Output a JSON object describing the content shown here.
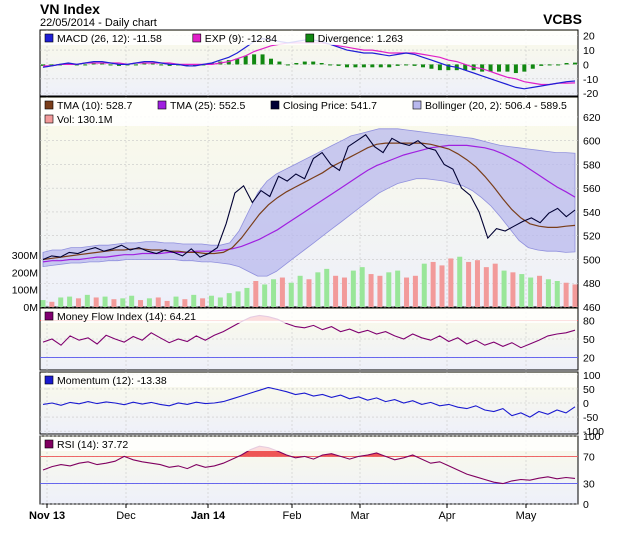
{
  "header": {
    "title": "VN Index",
    "subtitle": "22/05/2014 - Daily chart",
    "brand": "VCBS"
  },
  "colors": {
    "macd": "#1f1fd6",
    "exp": "#e020c8",
    "divergence": "#118811",
    "tma10": "#7a3e1a",
    "tma25": "#a020e0",
    "close": "#000033",
    "bollinger_fill": "#b8b8ee",
    "bollinger_line": "#9090dd",
    "vol_up": "#99e699",
    "vol_down": "#f29a9a",
    "mfi": "#800070",
    "momentum": "#1a1ad0",
    "rsi": "#800060",
    "overbought_fill": "#ee5555",
    "guide_line": "#ee5555",
    "guide_line_low": "#5555ee",
    "panel_bg_top": "#fbfbe8",
    "panel_bg_bottom": "#eef0fa",
    "grid": "#c8c8c8"
  },
  "chart_data": [
    {
      "type": "line",
      "panel": "macd",
      "legend": [
        {
          "swatch": "#1f1fd6",
          "label": "MACD (26, 12): -11.58"
        },
        {
          "swatch": "#e020c8",
          "label": "EXP (9): -12.84"
        },
        {
          "swatch": "#118811",
          "label": "Divergence: 1.263"
        }
      ],
      "y_ticks": [
        "20",
        "10",
        "0",
        "-10",
        "-20"
      ],
      "ylim": [
        -22,
        24
      ],
      "series": [
        {
          "key": "macd",
          "values": [
            -2,
            -1,
            0,
            1,
            0,
            1,
            2,
            2,
            1,
            0,
            0,
            1,
            2,
            2,
            1,
            0,
            0,
            -1,
            -1,
            0,
            1,
            3,
            5,
            8,
            12,
            16,
            18,
            17,
            16,
            15,
            16,
            17,
            17,
            16,
            14,
            12,
            10,
            9,
            8,
            8,
            7,
            6,
            7,
            8,
            7,
            5,
            3,
            1,
            -1,
            -2,
            -4,
            -6,
            -8,
            -10,
            -12,
            -14,
            -16,
            -17,
            -16,
            -15,
            -14,
            -13,
            -12,
            -11.58
          ]
        },
        {
          "key": "exp",
          "values": [
            -1,
            -1,
            0,
            0,
            0,
            1,
            1,
            1,
            1,
            1,
            0,
            1,
            1,
            1,
            1,
            1,
            0,
            0,
            0,
            0,
            0,
            1,
            2,
            4,
            6,
            9,
            11,
            13,
            14,
            15,
            15,
            15,
            15,
            15,
            14,
            13,
            12,
            11,
            10,
            10,
            9,
            8,
            8,
            8,
            8,
            7,
            6,
            5,
            3,
            2,
            0,
            -2,
            -3,
            -5,
            -7,
            -9,
            -10,
            -12,
            -13,
            -14,
            -14,
            -13,
            -13,
            -12.84
          ]
        },
        {
          "key": "divergence",
          "values": [
            -1,
            0,
            0,
            1,
            0,
            0,
            1,
            1,
            0,
            -1,
            0,
            0,
            1,
            1,
            0,
            -1,
            0,
            -1,
            -1,
            0,
            1,
            2,
            3,
            4,
            6,
            7,
            7,
            4,
            2,
            0,
            1,
            2,
            2,
            1,
            0,
            -1,
            -2,
            -2,
            -2,
            -2,
            -2,
            -2,
            -1,
            0,
            -1,
            -2,
            -3,
            -4,
            -4,
            -4,
            -4,
            -4,
            -5,
            -5,
            -5,
            -5,
            -6,
            -5,
            -3,
            -1,
            0,
            0,
            1,
            1.263
          ]
        }
      ]
    },
    {
      "type": "line",
      "panel": "price",
      "legend": [
        {
          "swatch": "#7a3e1a",
          "label": "TMA (10): 528.7"
        },
        {
          "swatch": "#a020e0",
          "label": "TMA (25): 552.5"
        },
        {
          "swatch": "#000033",
          "label": "Closing Price: 541.7"
        },
        {
          "swatch": "#b8b8ee",
          "label": "Bollinger (20, 2): 506.4 - 589.5"
        },
        {
          "swatch": "#f29a9a",
          "label": "Vol: 130.1M"
        }
      ],
      "y_ticks": [
        "620",
        "600",
        "580",
        "560",
        "540",
        "520",
        "500",
        "480",
        "460"
      ],
      "ylim": [
        460,
        625
      ],
      "vol_ticks": [
        "300M",
        "200M",
        "100M",
        "0M"
      ],
      "vol_lim": [
        0,
        300
      ],
      "series": [
        {
          "key": "close",
          "values": [
            500,
            503,
            502,
            506,
            505,
            508,
            510,
            507,
            509,
            512,
            508,
            510,
            507,
            505,
            508,
            506,
            503,
            509,
            502,
            505,
            510,
            530,
            556,
            562,
            548,
            558,
            553,
            570,
            566,
            572,
            568,
            585,
            590,
            580,
            575,
            595,
            600,
            605,
            595,
            590,
            602,
            598,
            596,
            600,
            594,
            592,
            580,
            576,
            560,
            554,
            540,
            518,
            526,
            524,
            528,
            532,
            535,
            531,
            539,
            543,
            536,
            541.7
          ]
        },
        {
          "key": "tma10",
          "values": [
            500,
            501,
            502,
            503,
            504,
            505,
            506,
            507,
            508,
            508,
            509,
            509,
            508,
            508,
            507,
            507,
            506,
            506,
            505,
            505,
            506,
            510,
            518,
            528,
            538,
            546,
            552,
            557,
            561,
            565,
            569,
            573,
            578,
            582,
            586,
            590,
            594,
            597,
            598,
            598,
            598,
            598,
            598,
            597,
            595,
            593,
            589,
            584,
            578,
            570,
            561,
            551,
            542,
            535,
            530,
            528,
            527,
            527,
            528,
            528.7
          ]
        },
        {
          "key": "tma25",
          "values": [
            498,
            499,
            499,
            500,
            500,
            501,
            502,
            502,
            503,
            504,
            504,
            505,
            505,
            505,
            506,
            506,
            506,
            507,
            507,
            507,
            508,
            509,
            511,
            514,
            517,
            521,
            525,
            530,
            535,
            540,
            545,
            550,
            555,
            560,
            565,
            570,
            575,
            579,
            582,
            585,
            588,
            590,
            592,
            594,
            595,
            596,
            596,
            596,
            595,
            594,
            592,
            589,
            585,
            581,
            576,
            571,
            566,
            561,
            557,
            552.5
          ]
        },
        {
          "key": "boll_upper",
          "values": [
            506,
            508,
            508,
            510,
            510,
            511,
            512,
            512,
            513,
            514,
            514,
            515,
            515,
            514,
            514,
            513,
            513,
            513,
            512,
            512,
            514,
            524,
            540,
            556,
            566,
            572,
            576,
            580,
            584,
            588,
            592,
            596,
            600,
            604,
            606,
            608,
            610,
            610,
            610,
            609,
            608,
            607,
            606,
            605,
            604,
            603,
            602,
            600,
            598,
            596,
            595,
            594,
            593,
            592,
            591,
            590,
            590,
            589.5
          ]
        },
        {
          "key": "boll_lower",
          "values": [
            494,
            495,
            496,
            497,
            497,
            498,
            498,
            499,
            499,
            500,
            500,
            500,
            500,
            500,
            500,
            499,
            499,
            498,
            498,
            497,
            496,
            494,
            490,
            486,
            486,
            490,
            496,
            502,
            508,
            514,
            520,
            526,
            532,
            538,
            544,
            550,
            556,
            560,
            564,
            566,
            568,
            568,
            567,
            566,
            564,
            562,
            558,
            552,
            545,
            536,
            526,
            516,
            510,
            508,
            507,
            507,
            506,
            506.4
          ]
        },
        {
          "key": "volume",
          "values": [
            40,
            30,
            55,
            60,
            50,
            70,
            55,
            60,
            45,
            50,
            65,
            40,
            50,
            55,
            35,
            60,
            45,
            70,
            50,
            65,
            55,
            80,
            90,
            110,
            150,
            130,
            160,
            170,
            140,
            180,
            160,
            200,
            220,
            180,
            170,
            210,
            230,
            190,
            180,
            200,
            210,
            170,
            180,
            250,
            260,
            240,
            280,
            290,
            260,
            270,
            230,
            250,
            210,
            200,
            190,
            170,
            180,
            160,
            150,
            140,
            130.1
          ]
        },
        {
          "key": "volume_down",
          "values": [
            0,
            1,
            0,
            0,
            1,
            0,
            1,
            0,
            1,
            0,
            0,
            1,
            0,
            1,
            1,
            0,
            1,
            0,
            1,
            0,
            0,
            0,
            0,
            0,
            1,
            0,
            0,
            1,
            0,
            0,
            1,
            0,
            0,
            1,
            1,
            0,
            0,
            1,
            1,
            0,
            0,
            1,
            1,
            0,
            1,
            1,
            1,
            0,
            1,
            1,
            1,
            1,
            0,
            1,
            0,
            0,
            1,
            0,
            0,
            1,
            1
          ]
        }
      ]
    },
    {
      "type": "line",
      "panel": "mfi",
      "legend": [
        {
          "swatch": "#800070",
          "label": "Money Flow Index (14): 64.21"
        }
      ],
      "y_ticks": [
        "80",
        "50",
        "20"
      ],
      "ylim": [
        0,
        100
      ],
      "guides": [
        80,
        20
      ],
      "series": [
        {
          "key": "mfi",
          "values": [
            45,
            50,
            40,
            55,
            48,
            52,
            42,
            56,
            50,
            45,
            54,
            48,
            60,
            52,
            44,
            50,
            46,
            55,
            48,
            56,
            62,
            70,
            78,
            85,
            88,
            86,
            82,
            75,
            70,
            68,
            72,
            65,
            70,
            62,
            66,
            60,
            64,
            58,
            62,
            55,
            50,
            58,
            52,
            48,
            55,
            46,
            52,
            42,
            48,
            40,
            45,
            38,
            44,
            36,
            42,
            48,
            55,
            58,
            60,
            64.21
          ]
        }
      ]
    },
    {
      "type": "line",
      "panel": "momentum",
      "legend": [
        {
          "swatch": "#1a1ad0",
          "label": "Momentum (12): -13.38"
        }
      ],
      "y_ticks": [
        "100",
        "50",
        "0",
        "-50",
        "-100"
      ],
      "ylim": [
        -110,
        110
      ],
      "series": [
        {
          "key": "momentum",
          "values": [
            -5,
            0,
            -8,
            2,
            -3,
            5,
            -2,
            4,
            0,
            -6,
            3,
            -4,
            2,
            -5,
            -10,
            0,
            -5,
            3,
            -2,
            0,
            5,
            15,
            25,
            35,
            45,
            55,
            48,
            40,
            30,
            35,
            25,
            30,
            20,
            28,
            15,
            22,
            10,
            18,
            5,
            12,
            0,
            8,
            -5,
            2,
            -10,
            -5,
            -15,
            -20,
            -10,
            -25,
            -30,
            -20,
            -45,
            -35,
            -50,
            -30,
            -40,
            -25,
            -35,
            -13.38
          ]
        }
      ]
    },
    {
      "type": "line",
      "panel": "rsi",
      "legend": [
        {
          "swatch": "#800060",
          "label": "RSI (14): 37.72"
        }
      ],
      "y_ticks": [
        "100",
        "70",
        "30",
        "0"
      ],
      "ylim": [
        0,
        100
      ],
      "guides": [
        70,
        30
      ],
      "series": [
        {
          "key": "rsi",
          "values": [
            50,
            55,
            58,
            56,
            60,
            62,
            58,
            60,
            63,
            70,
            65,
            62,
            60,
            58,
            54,
            56,
            52,
            58,
            54,
            56,
            60,
            66,
            72,
            80,
            85,
            83,
            78,
            72,
            68,
            70,
            66,
            72,
            74,
            70,
            66,
            70,
            72,
            75,
            70,
            65,
            68,
            72,
            66,
            60,
            62,
            56,
            50,
            44,
            40,
            36,
            32,
            30,
            34,
            36,
            35,
            38,
            40,
            37,
            39,
            37.72
          ]
        }
      ]
    },
    {
      "type": "axis",
      "panel": "dates",
      "x_labels": [
        "Nov 13",
        "Dec",
        "Jan 14",
        "Feb",
        "Mar",
        "Apr",
        "May"
      ]
    }
  ]
}
